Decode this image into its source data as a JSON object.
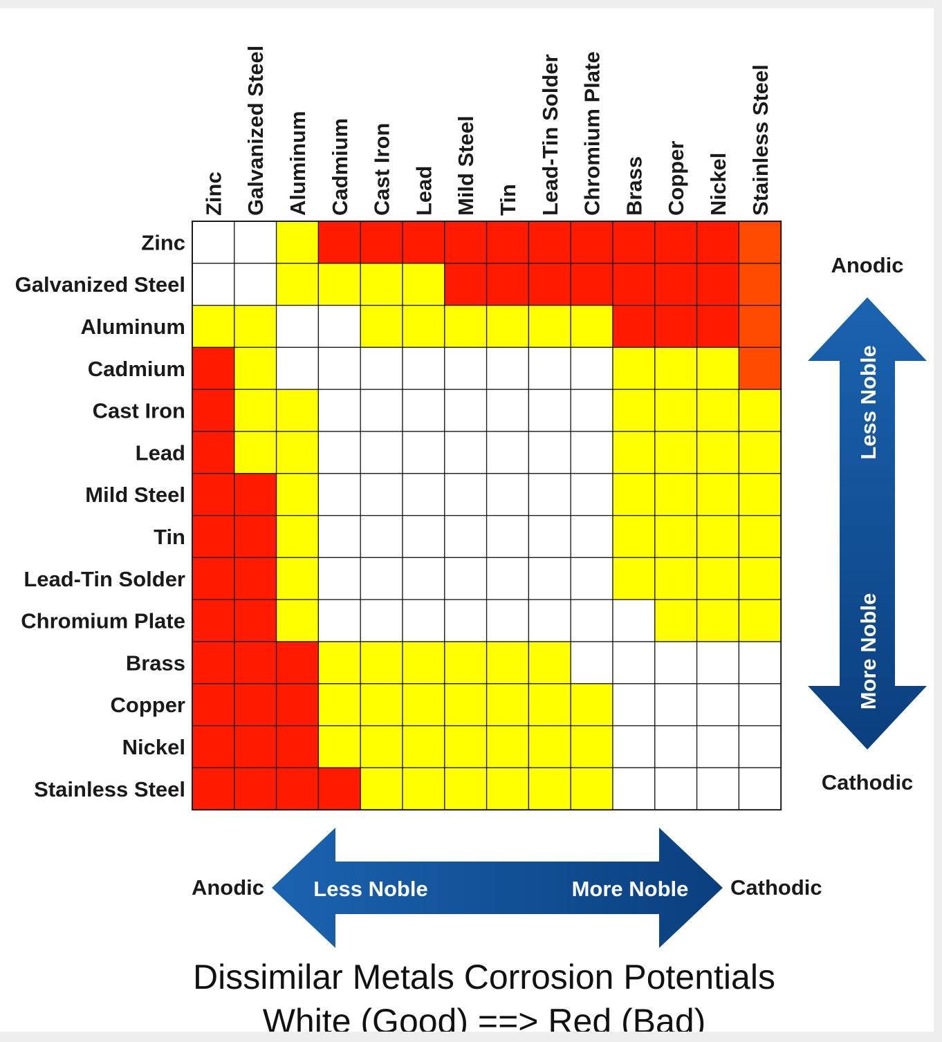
{
  "chart_data": {
    "type": "heatmap",
    "rows": [
      "Zinc",
      "Galvanized Steel",
      "Aluminum",
      "Cadmium",
      "Cast Iron",
      "Lead",
      "Mild Steel",
      "Tin",
      "Lead-Tin Solder",
      "Chromium Plate",
      "Brass",
      "Copper",
      "Nickel",
      "Stainless Steel"
    ],
    "columns": [
      "Zinc",
      "Galvanized Steel",
      "Aluminum",
      "Cadmium",
      "Cast Iron",
      "Lead",
      "Mild Steel",
      "Tin",
      "Lead-Tin Solder",
      "Chromium Plate",
      "Brass",
      "Copper",
      "Nickel",
      "Stainless Steel"
    ],
    "cells": [
      [
        "W",
        "W",
        "Y",
        "R",
        "R",
        "R",
        "R",
        "R",
        "R",
        "R",
        "R",
        "R",
        "R",
        "O"
      ],
      [
        "W",
        "W",
        "Y",
        "Y",
        "Y",
        "Y",
        "R",
        "R",
        "R",
        "R",
        "R",
        "R",
        "R",
        "O"
      ],
      [
        "Y",
        "Y",
        "W",
        "W",
        "Y",
        "Y",
        "Y",
        "Y",
        "Y",
        "Y",
        "R",
        "R",
        "R",
        "O"
      ],
      [
        "R",
        "Y",
        "W",
        "W",
        "W",
        "W",
        "W",
        "W",
        "W",
        "W",
        "Y",
        "Y",
        "Y",
        "O"
      ],
      [
        "R",
        "Y",
        "Y",
        "W",
        "W",
        "W",
        "W",
        "W",
        "W",
        "W",
        "Y",
        "Y",
        "Y",
        "Y"
      ],
      [
        "R",
        "Y",
        "Y",
        "W",
        "W",
        "W",
        "W",
        "W",
        "W",
        "W",
        "Y",
        "Y",
        "Y",
        "Y"
      ],
      [
        "R",
        "R",
        "Y",
        "W",
        "W",
        "W",
        "W",
        "W",
        "W",
        "W",
        "Y",
        "Y",
        "Y",
        "Y"
      ],
      [
        "R",
        "R",
        "Y",
        "W",
        "W",
        "W",
        "W",
        "W",
        "W",
        "W",
        "Y",
        "Y",
        "Y",
        "Y"
      ],
      [
        "R",
        "R",
        "Y",
        "W",
        "W",
        "W",
        "W",
        "W",
        "W",
        "W",
        "Y",
        "Y",
        "Y",
        "Y"
      ],
      [
        "R",
        "R",
        "Y",
        "W",
        "W",
        "W",
        "W",
        "W",
        "W",
        "W",
        "W",
        "Y",
        "Y",
        "Y"
      ],
      [
        "R",
        "R",
        "R",
        "Y",
        "Y",
        "Y",
        "Y",
        "Y",
        "Y",
        "W",
        "W",
        "W",
        "W",
        "W"
      ],
      [
        "R",
        "R",
        "R",
        "Y",
        "Y",
        "Y",
        "Y",
        "Y",
        "Y",
        "Y",
        "W",
        "W",
        "W",
        "W"
      ],
      [
        "R",
        "R",
        "R",
        "Y",
        "Y",
        "Y",
        "Y",
        "Y",
        "Y",
        "Y",
        "W",
        "W",
        "W",
        "W"
      ],
      [
        "R",
        "R",
        "R",
        "R",
        "Y",
        "Y",
        "Y",
        "Y",
        "Y",
        "Y",
        "W",
        "W",
        "W",
        "W"
      ]
    ],
    "colors": {
      "W": "#ffffff",
      "Y": "#ffff00",
      "R": "#ff1a00",
      "O": "#ff4a00"
    },
    "title": "Dissimilar Metals Corrosion Potentials",
    "subtitle": "White (Good) ==> Red (Bad)"
  },
  "vertical_arrow": {
    "top_label": "Anodic",
    "bottom_label": "Cathodic",
    "upper_text": "Less Noble",
    "lower_text": "More Noble",
    "color": "#0d4f96"
  },
  "horizontal_arrow": {
    "left_label": "Anodic",
    "right_label": "Cathodic",
    "left_text": "Less Noble",
    "right_text": "More Noble",
    "color": "#0d4f96"
  }
}
